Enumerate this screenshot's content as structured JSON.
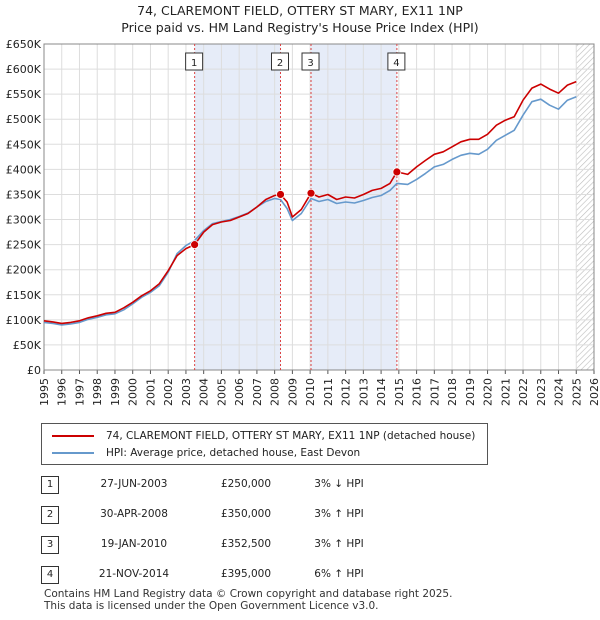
{
  "title_line1": "74, CLAREMONT FIELD, OTTERY ST MARY, EX11 1NP",
  "title_line2": "Price paid vs. HM Land Registry's House Price Index (HPI)",
  "chart_data": {
    "type": "line",
    "title": "74, CLAREMONT FIELD, OTTERY ST MARY, EX11 1NP",
    "subtitle": "Price paid vs. HM Land Registry's House Price Index (HPI)",
    "xlabel": "",
    "ylabel": "",
    "xlim": [
      1995,
      2026
    ],
    "ylim": [
      0,
      650000
    ],
    "y_ticks": [
      {
        "value": 0,
        "label": "£0"
      },
      {
        "value": 50000,
        "label": "£50K"
      },
      {
        "value": 100000,
        "label": "£100K"
      },
      {
        "value": 150000,
        "label": "£150K"
      },
      {
        "value": 200000,
        "label": "£200K"
      },
      {
        "value": 250000,
        "label": "£250K"
      },
      {
        "value": 300000,
        "label": "£300K"
      },
      {
        "value": 350000,
        "label": "£350K"
      },
      {
        "value": 400000,
        "label": "£400K"
      },
      {
        "value": 450000,
        "label": "£450K"
      },
      {
        "value": 500000,
        "label": "£500K"
      },
      {
        "value": 550000,
        "label": "£550K"
      },
      {
        "value": 600000,
        "label": "£600K"
      },
      {
        "value": 650000,
        "label": "£650K"
      }
    ],
    "x_ticks": [
      "1995",
      "1996",
      "1997",
      "1998",
      "1999",
      "2000",
      "2001",
      "2002",
      "2003",
      "2004",
      "2005",
      "2006",
      "2007",
      "2008",
      "2009",
      "2010",
      "2011",
      "2012",
      "2013",
      "2014",
      "2015",
      "2016",
      "2017",
      "2018",
      "2019",
      "2020",
      "2021",
      "2022",
      "2023",
      "2024",
      "2025",
      "2026"
    ],
    "grid": true,
    "shaded_ranges": [
      [
        2003.49,
        2008.33
      ],
      [
        2010.05,
        2014.89
      ]
    ],
    "hatched_from": 2025.0,
    "series": [
      {
        "name": "74, CLAREMONT FIELD, OTTERY ST MARY, EX11 1NP (detached house)",
        "color": "#cc0000",
        "x": [
          1995.0,
          1995.5,
          1996.0,
          1996.5,
          1997.0,
          1997.5,
          1998.0,
          1998.5,
          1999.0,
          1999.5,
          2000.0,
          2000.5,
          2001.0,
          2001.5,
          2002.0,
          2002.5,
          2003.0,
          2003.49,
          2004.0,
          2004.5,
          2005.0,
          2005.5,
          2006.0,
          2006.5,
          2007.0,
          2007.5,
          2008.0,
          2008.33,
          2008.7,
          2009.0,
          2009.5,
          2010.05,
          2010.5,
          2011.0,
          2011.5,
          2012.0,
          2012.5,
          2013.0,
          2013.5,
          2014.0,
          2014.5,
          2014.89,
          2015.5,
          2016.0,
          2016.5,
          2017.0,
          2017.5,
          2018.0,
          2018.5,
          2019.0,
          2019.5,
          2020.0,
          2020.5,
          2021.0,
          2021.5,
          2022.0,
          2022.5,
          2023.0,
          2023.5,
          2024.0,
          2024.5,
          2025.0
        ],
        "values": [
          98000,
          96000,
          93000,
          95000,
          98000,
          104000,
          108000,
          113000,
          115000,
          124000,
          135000,
          148000,
          158000,
          172000,
          198000,
          228000,
          242000,
          250000,
          275000,
          290000,
          295000,
          298000,
          305000,
          312000,
          325000,
          340000,
          348000,
          350000,
          335000,
          305000,
          320000,
          352500,
          345000,
          350000,
          340000,
          345000,
          343000,
          350000,
          358000,
          362000,
          372000,
          395000,
          390000,
          405000,
          418000,
          430000,
          435000,
          445000,
          455000,
          460000,
          460000,
          470000,
          488000,
          498000,
          505000,
          538000,
          562000,
          570000,
          560000,
          552000,
          568000,
          575000
        ]
      },
      {
        "name": "HPI: Average price, detached house, East Devon",
        "color": "#6699cc",
        "x": [
          1995.0,
          1995.5,
          1996.0,
          1996.5,
          1997.0,
          1997.5,
          1998.0,
          1998.5,
          1999.0,
          1999.5,
          2000.0,
          2000.5,
          2001.0,
          2001.5,
          2002.0,
          2002.5,
          2003.0,
          2003.49,
          2004.0,
          2004.5,
          2005.0,
          2005.5,
          2006.0,
          2006.5,
          2007.0,
          2007.5,
          2008.0,
          2008.33,
          2008.7,
          2009.0,
          2009.5,
          2010.05,
          2010.5,
          2011.0,
          2011.5,
          2012.0,
          2012.5,
          2013.0,
          2013.5,
          2014.0,
          2014.5,
          2014.89,
          2015.5,
          2016.0,
          2016.5,
          2017.0,
          2017.5,
          2018.0,
          2018.5,
          2019.0,
          2019.5,
          2020.0,
          2020.5,
          2021.0,
          2021.5,
          2022.0,
          2022.5,
          2023.0,
          2023.5,
          2024.0,
          2024.5,
          2025.0
        ],
        "values": [
          95000,
          93000,
          90000,
          92000,
          95000,
          101000,
          105000,
          110000,
          112000,
          120000,
          132000,
          145000,
          155000,
          168000,
          195000,
          232000,
          248000,
          258000,
          278000,
          292000,
          296000,
          300000,
          306000,
          313000,
          325000,
          336000,
          342000,
          340000,
          322000,
          298000,
          312000,
          342000,
          336000,
          340000,
          332000,
          335000,
          333000,
          338000,
          344000,
          348000,
          358000,
          372000,
          370000,
          380000,
          392000,
          405000,
          410000,
          420000,
          428000,
          432000,
          430000,
          440000,
          458000,
          468000,
          478000,
          508000,
          535000,
          540000,
          528000,
          520000,
          538000,
          545000
        ]
      }
    ],
    "sale_markers": [
      {
        "label": "1",
        "x": 2003.49,
        "value": 250000
      },
      {
        "label": "2",
        "x": 2008.33,
        "value": 350000
      },
      {
        "label": "3",
        "x": 2010.05,
        "value": 352500
      },
      {
        "label": "4",
        "x": 2014.89,
        "value": 395000
      }
    ]
  },
  "legend": {
    "items": [
      {
        "label": "74, CLAREMONT FIELD, OTTERY ST MARY, EX11 1NP (detached house)",
        "color": "#cc0000"
      },
      {
        "label": "HPI: Average price, detached house, East Devon",
        "color": "#6699cc"
      }
    ]
  },
  "sales": [
    {
      "num": "1",
      "date": "27-JUN-2003",
      "price": "£250,000",
      "hpi": "3% ↓ HPI"
    },
    {
      "num": "2",
      "date": "30-APR-2008",
      "price": "£350,000",
      "hpi": "3% ↑ HPI"
    },
    {
      "num": "3",
      "date": "19-JAN-2010",
      "price": "£352,500",
      "hpi": "3% ↑ HPI"
    },
    {
      "num": "4",
      "date": "21-NOV-2014",
      "price": "£395,000",
      "hpi": "6% ↑ HPI"
    }
  ],
  "footer": {
    "line1": "Contains HM Land Registry data © Crown copyright and database right 2025.",
    "line2": "This data is licensed under the Open Government Licence v3.0."
  }
}
